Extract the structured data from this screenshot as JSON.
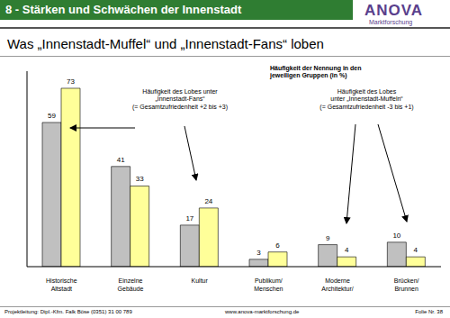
{
  "header": {
    "title": "8 - Stärken und Schwächen der Innenstadt",
    "logo": {
      "name": "ANOVA",
      "tagline": "Marktforschung"
    }
  },
  "chart_data": {
    "type": "bar",
    "title": "Was „Innenstadt-Muffel“ und „Innenstadt-Fans“ loben",
    "subtitle": "Häufigkeit der Nennung in den\njeweiligen Gruppen (in %)",
    "categories": [
      "Historische Altstadt",
      "Einzelne Gebäude",
      "Kultur",
      "Publikum/ Menschen",
      "Moderne Architektur/",
      "Brücken/ Brunnen"
    ],
    "series": [
      {
        "color": "#c0c0c0",
        "values": [
          59,
          41,
          17,
          3,
          9,
          10
        ]
      },
      {
        "color": "#ffff99",
        "values": [
          73,
          33,
          24,
          6,
          4,
          4
        ]
      }
    ],
    "ylim": [
      0,
      80
    ],
    "data_labels": true,
    "tick_labels": "x",
    "grid": false,
    "annotations": [
      "Häufigkeit des Lobes unter\n„Innenstadt-Fans“\n(= Gesamtzufriedenheit +2 bis +3)",
      "Häufigkeit des Lobes\nunter „Innenstadt-Muffeln“\n(= Gesamtzufriedenheit -3 bis +1)"
    ]
  },
  "footer": {
    "left": "Projektleitung: Dipl.-Kfm. Falk Böse (0351) 31 00 789",
    "center": "www.anova-marktforschung.de",
    "right": "Folie Nr. 38"
  }
}
